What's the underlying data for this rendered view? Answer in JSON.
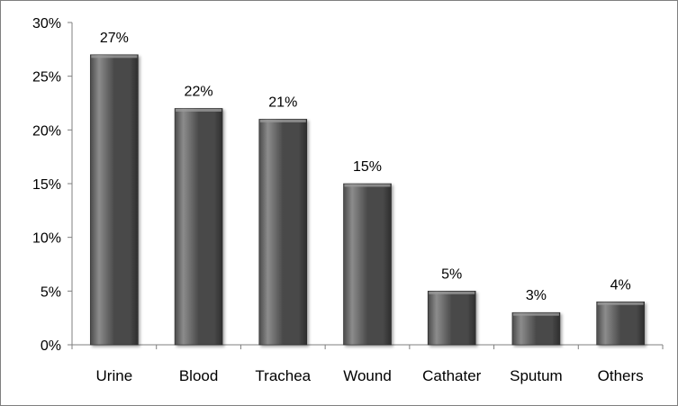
{
  "chart_data": {
    "type": "bar",
    "categories": [
      "Urine",
      "Blood",
      "Trachea",
      "Wound",
      "Cathater",
      "Sputum",
      "Others"
    ],
    "values": [
      27,
      22,
      21,
      15,
      5,
      3,
      4
    ],
    "data_labels": [
      "27%",
      "22%",
      "21%",
      "15%",
      "5%",
      "3%",
      "4%"
    ],
    "title": "",
    "xlabel": "",
    "ylabel": "",
    "ylim": [
      0,
      30
    ],
    "yticks": [
      0,
      5,
      10,
      15,
      20,
      25,
      30
    ],
    "ytick_labels": [
      "0%",
      "5%",
      "10%",
      "15%",
      "20%",
      "25%",
      "30%"
    ],
    "grid": false,
    "legend": "none",
    "bar_color": "#4a4a4a",
    "bar_highlight_color": "#8c8c8c",
    "axis_color": "#7f7f7f"
  }
}
